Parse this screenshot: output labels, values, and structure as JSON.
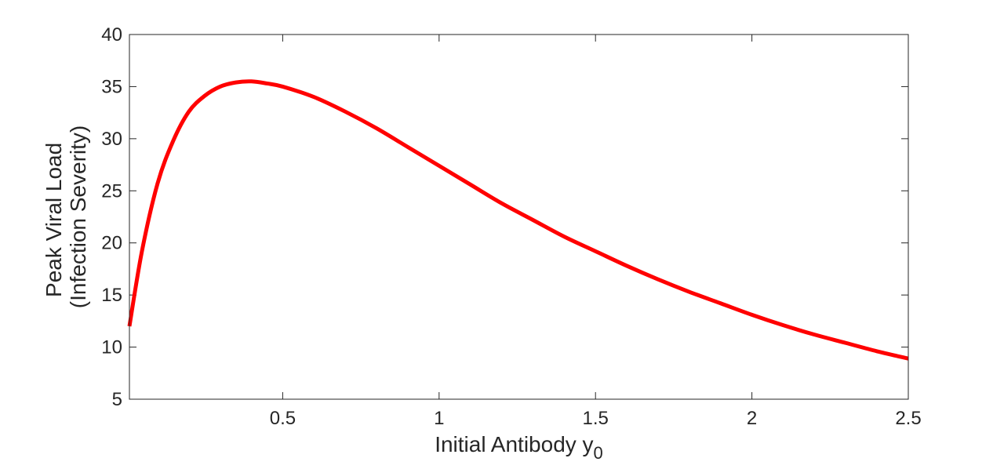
{
  "chart_data": {
    "type": "line",
    "xlabel": "Initial Antibody y",
    "xlabel_subscript": "0",
    "ylabel_lines": [
      "Peak Viral Load",
      "(Infection Severity)"
    ],
    "xlim": [
      0.01,
      2.5
    ],
    "ylim": [
      5,
      40
    ],
    "xticks": [
      0.5,
      1,
      1.5,
      2,
      2.5
    ],
    "xtick_labels": [
      "0.5",
      "1",
      "1.5",
      "2",
      "2.5"
    ],
    "yticks": [
      5,
      10,
      15,
      20,
      25,
      30,
      35,
      40
    ],
    "ytick_labels": [
      "5",
      "10",
      "15",
      "20",
      "25",
      "30",
      "35",
      "40"
    ],
    "grid": false,
    "box": true,
    "series": [
      {
        "color": "#ff0000",
        "x": [
          0.01,
          0.05,
          0.1,
          0.15,
          0.2,
          0.25,
          0.3,
          0.35,
          0.4,
          0.45,
          0.5,
          0.6,
          0.7,
          0.8,
          0.9,
          1.0,
          1.1,
          1.2,
          1.3,
          1.4,
          1.5,
          1.6,
          1.7,
          1.8,
          1.9,
          2.0,
          2.1,
          2.2,
          2.3,
          2.4,
          2.5
        ],
        "y": [
          12.0,
          19.2,
          25.7,
          29.8,
          32.6,
          34.1,
          35.0,
          35.4,
          35.5,
          35.3,
          35.0,
          34.0,
          32.6,
          31.0,
          29.2,
          27.4,
          25.6,
          23.8,
          22.2,
          20.6,
          19.2,
          17.8,
          16.5,
          15.3,
          14.2,
          13.1,
          12.1,
          11.2,
          10.4,
          9.6,
          8.9
        ]
      }
    ]
  }
}
